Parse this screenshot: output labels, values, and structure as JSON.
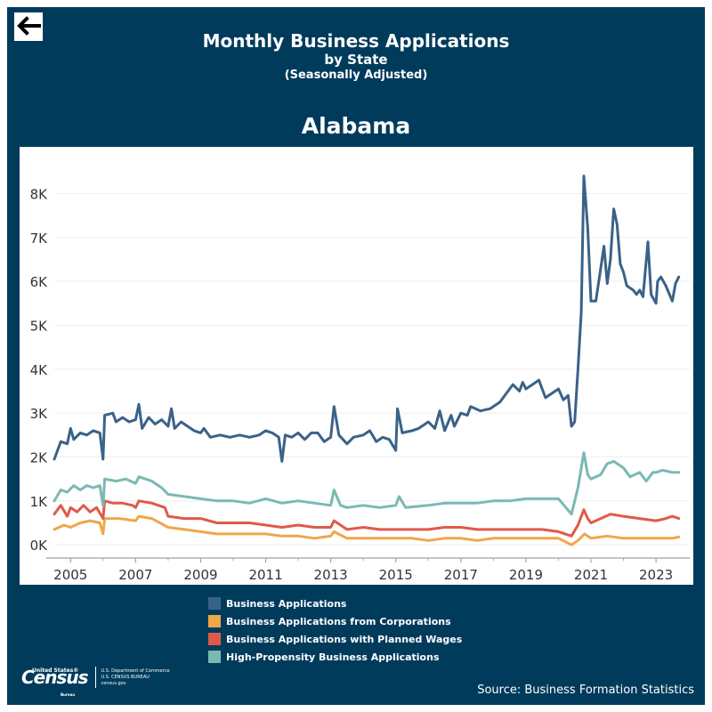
{
  "header": {
    "title": "Monthly Business Applications",
    "subtitle": "by State",
    "subtitle2": "(Seasonally Adjusted)",
    "state": "Alabama"
  },
  "footer": {
    "source": "Source: Business Formation Statistics",
    "logo": {
      "top": "United States®",
      "word": "Census",
      "bureau": "Bureau",
      "dept1": "U.S. Department of Commerce",
      "dept2": "U.S. CENSUS BUREAU",
      "dept3": "census.gov"
    }
  },
  "colors": {
    "background": "#003b5c",
    "ba": "#3a6289",
    "corp": "#f0a64a",
    "wages": "#e05a4a",
    "hp": "#7ab9b3"
  },
  "icons": {
    "back": "left-arrow-icon"
  },
  "chart_data": {
    "type": "line",
    "title": "Alabama",
    "xlabel": "",
    "ylabel": "",
    "xlim": [
      2004.5,
      2023.9
    ],
    "ylim": [
      -300,
      8900
    ],
    "y_ticks": [
      0,
      1000,
      2000,
      3000,
      4000,
      5000,
      6000,
      7000,
      8000
    ],
    "y_tick_labels": [
      "0K",
      "1K",
      "2K",
      "3K",
      "4K",
      "5K",
      "6K",
      "7K",
      "8K"
    ],
    "x_ticks": [
      2005,
      2007,
      2009,
      2011,
      2013,
      2015,
      2017,
      2019,
      2021,
      2023
    ],
    "x_tick_labels": [
      "2005",
      "2007",
      "2009",
      "2011",
      "2013",
      "2015",
      "2017",
      "2019",
      "2021",
      "2023"
    ],
    "grid": true,
    "legend_position": "bottom",
    "series": [
      {
        "name": "Business Applications",
        "color": "#3a6289",
        "points": [
          [
            2004.5,
            1950
          ],
          [
            2004.7,
            2350
          ],
          [
            2004.9,
            2300
          ],
          [
            2005.0,
            2650
          ],
          [
            2005.1,
            2400
          ],
          [
            2005.3,
            2550
          ],
          [
            2005.5,
            2500
          ],
          [
            2005.7,
            2600
          ],
          [
            2005.9,
            2550
          ],
          [
            2006.0,
            1950
          ],
          [
            2006.05,
            2950
          ],
          [
            2006.3,
            3000
          ],
          [
            2006.4,
            2800
          ],
          [
            2006.6,
            2900
          ],
          [
            2006.8,
            2800
          ],
          [
            2007.0,
            2850
          ],
          [
            2007.1,
            3200
          ],
          [
            2007.2,
            2650
          ],
          [
            2007.4,
            2900
          ],
          [
            2007.6,
            2750
          ],
          [
            2007.8,
            2850
          ],
          [
            2008.0,
            2700
          ],
          [
            2008.1,
            3100
          ],
          [
            2008.2,
            2650
          ],
          [
            2008.4,
            2800
          ],
          [
            2008.6,
            2700
          ],
          [
            2008.8,
            2600
          ],
          [
            2009.0,
            2550
          ],
          [
            2009.1,
            2650
          ],
          [
            2009.3,
            2450
          ],
          [
            2009.6,
            2500
          ],
          [
            2009.9,
            2450
          ],
          [
            2010.2,
            2500
          ],
          [
            2010.5,
            2450
          ],
          [
            2010.8,
            2500
          ],
          [
            2011.0,
            2600
          ],
          [
            2011.2,
            2550
          ],
          [
            2011.4,
            2450
          ],
          [
            2011.5,
            1900
          ],
          [
            2011.6,
            2500
          ],
          [
            2011.8,
            2450
          ],
          [
            2012.0,
            2550
          ],
          [
            2012.2,
            2400
          ],
          [
            2012.4,
            2550
          ],
          [
            2012.6,
            2550
          ],
          [
            2012.8,
            2350
          ],
          [
            2013.0,
            2450
          ],
          [
            2013.1,
            3150
          ],
          [
            2013.25,
            2500
          ],
          [
            2013.5,
            2300
          ],
          [
            2013.7,
            2450
          ],
          [
            2014.0,
            2500
          ],
          [
            2014.2,
            2600
          ],
          [
            2014.4,
            2350
          ],
          [
            2014.6,
            2450
          ],
          [
            2014.8,
            2400
          ],
          [
            2015.0,
            2150
          ],
          [
            2015.05,
            3100
          ],
          [
            2015.2,
            2550
          ],
          [
            2015.5,
            2600
          ],
          [
            2015.7,
            2650
          ],
          [
            2016.0,
            2800
          ],
          [
            2016.2,
            2650
          ],
          [
            2016.35,
            3050
          ],
          [
            2016.5,
            2600
          ],
          [
            2016.7,
            2950
          ],
          [
            2016.8,
            2700
          ],
          [
            2017.0,
            3000
          ],
          [
            2017.2,
            2950
          ],
          [
            2017.3,
            3150
          ],
          [
            2017.6,
            3050
          ],
          [
            2017.9,
            3100
          ],
          [
            2018.2,
            3250
          ],
          [
            2018.4,
            3450
          ],
          [
            2018.6,
            3650
          ],
          [
            2018.8,
            3500
          ],
          [
            2018.9,
            3700
          ],
          [
            2019.0,
            3550
          ],
          [
            2019.2,
            3650
          ],
          [
            2019.4,
            3750
          ],
          [
            2019.6,
            3350
          ],
          [
            2019.8,
            3450
          ],
          [
            2020.0,
            3550
          ],
          [
            2020.15,
            3300
          ],
          [
            2020.3,
            3400
          ],
          [
            2020.4,
            2700
          ],
          [
            2020.5,
            2800
          ],
          [
            2020.6,
            4000
          ],
          [
            2020.7,
            5300
          ],
          [
            2020.78,
            8400
          ],
          [
            2020.9,
            7200
          ],
          [
            2021.0,
            5550
          ],
          [
            2021.15,
            5550
          ],
          [
            2021.3,
            6300
          ],
          [
            2021.4,
            6800
          ],
          [
            2021.5,
            5950
          ],
          [
            2021.6,
            6500
          ],
          [
            2021.7,
            7650
          ],
          [
            2021.8,
            7300
          ],
          [
            2021.9,
            6400
          ],
          [
            2022.0,
            6200
          ],
          [
            2022.1,
            5900
          ],
          [
            2022.3,
            5800
          ],
          [
            2022.4,
            5700
          ],
          [
            2022.5,
            5800
          ],
          [
            2022.6,
            5650
          ],
          [
            2022.75,
            6900
          ],
          [
            2022.85,
            5700
          ],
          [
            2023.0,
            5500
          ],
          [
            2023.05,
            6000
          ],
          [
            2023.15,
            6100
          ],
          [
            2023.3,
            5900
          ],
          [
            2023.5,
            5550
          ],
          [
            2023.6,
            5950
          ],
          [
            2023.7,
            6100
          ]
        ]
      },
      {
        "name": "Business Applications from Corporations",
        "color": "#f0a64a",
        "points": [
          [
            2004.5,
            350
          ],
          [
            2004.8,
            450
          ],
          [
            2005.0,
            400
          ],
          [
            2005.3,
            500
          ],
          [
            2005.6,
            550
          ],
          [
            2005.9,
            500
          ],
          [
            2006.0,
            250
          ],
          [
            2006.05,
            600
          ],
          [
            2006.5,
            600
          ],
          [
            2007.0,
            550
          ],
          [
            2007.1,
            650
          ],
          [
            2007.5,
            600
          ],
          [
            2008.0,
            400
          ],
          [
            2008.5,
            350
          ],
          [
            2009.0,
            300
          ],
          [
            2009.5,
            250
          ],
          [
            2010.0,
            250
          ],
          [
            2010.5,
            250
          ],
          [
            2011.0,
            250
          ],
          [
            2011.5,
            200
          ],
          [
            2012.0,
            200
          ],
          [
            2012.5,
            150
          ],
          [
            2013.0,
            200
          ],
          [
            2013.1,
            300
          ],
          [
            2013.5,
            150
          ],
          [
            2014.0,
            150
          ],
          [
            2014.5,
            150
          ],
          [
            2015.0,
            150
          ],
          [
            2015.5,
            150
          ],
          [
            2016.0,
            100
          ],
          [
            2016.5,
            150
          ],
          [
            2017.0,
            150
          ],
          [
            2017.5,
            100
          ],
          [
            2018.0,
            150
          ],
          [
            2018.5,
            150
          ],
          [
            2019.0,
            150
          ],
          [
            2019.5,
            150
          ],
          [
            2020.0,
            150
          ],
          [
            2020.4,
            0
          ],
          [
            2020.6,
            100
          ],
          [
            2020.8,
            250
          ],
          [
            2021.0,
            150
          ],
          [
            2021.5,
            200
          ],
          [
            2022.0,
            150
          ],
          [
            2022.5,
            150
          ],
          [
            2023.0,
            150
          ],
          [
            2023.5,
            150
          ],
          [
            2023.7,
            180
          ]
        ]
      },
      {
        "name": "Business Applications with Planned Wages",
        "color": "#e05a4a",
        "points": [
          [
            2004.5,
            700
          ],
          [
            2004.7,
            900
          ],
          [
            2004.9,
            650
          ],
          [
            2005.0,
            850
          ],
          [
            2005.2,
            750
          ],
          [
            2005.4,
            900
          ],
          [
            2005.6,
            750
          ],
          [
            2005.8,
            850
          ],
          [
            2006.0,
            600
          ],
          [
            2006.05,
            1000
          ],
          [
            2006.3,
            950
          ],
          [
            2006.6,
            950
          ],
          [
            2006.9,
            900
          ],
          [
            2007.0,
            850
          ],
          [
            2007.1,
            1000
          ],
          [
            2007.5,
            950
          ],
          [
            2007.9,
            850
          ],
          [
            2008.0,
            650
          ],
          [
            2008.5,
            600
          ],
          [
            2009.0,
            600
          ],
          [
            2009.5,
            500
          ],
          [
            2010.0,
            500
          ],
          [
            2010.5,
            500
          ],
          [
            2011.0,
            450
          ],
          [
            2011.5,
            400
          ],
          [
            2012.0,
            450
          ],
          [
            2012.5,
            400
          ],
          [
            2013.0,
            400
          ],
          [
            2013.1,
            550
          ],
          [
            2013.5,
            350
          ],
          [
            2014.0,
            400
          ],
          [
            2014.5,
            350
          ],
          [
            2015.0,
            350
          ],
          [
            2015.5,
            350
          ],
          [
            2016.0,
            350
          ],
          [
            2016.5,
            400
          ],
          [
            2017.0,
            400
          ],
          [
            2017.5,
            350
          ],
          [
            2018.0,
            350
          ],
          [
            2018.5,
            350
          ],
          [
            2019.0,
            350
          ],
          [
            2019.5,
            350
          ],
          [
            2020.0,
            300
          ],
          [
            2020.4,
            200
          ],
          [
            2020.6,
            450
          ],
          [
            2020.78,
            800
          ],
          [
            2020.9,
            600
          ],
          [
            2021.0,
            500
          ],
          [
            2021.3,
            600
          ],
          [
            2021.6,
            700
          ],
          [
            2022.0,
            650
          ],
          [
            2022.5,
            600
          ],
          [
            2023.0,
            550
          ],
          [
            2023.3,
            600
          ],
          [
            2023.5,
            650
          ],
          [
            2023.7,
            600
          ]
        ]
      },
      {
        "name": "High-Propensity Business Applications",
        "color": "#7ab9b3",
        "points": [
          [
            2004.5,
            1000
          ],
          [
            2004.7,
            1250
          ],
          [
            2004.9,
            1200
          ],
          [
            2005.1,
            1350
          ],
          [
            2005.3,
            1250
          ],
          [
            2005.5,
            1350
          ],
          [
            2005.7,
            1300
          ],
          [
            2005.9,
            1350
          ],
          [
            2006.0,
            900
          ],
          [
            2006.05,
            1500
          ],
          [
            2006.4,
            1450
          ],
          [
            2006.7,
            1500
          ],
          [
            2007.0,
            1400
          ],
          [
            2007.1,
            1550
          ],
          [
            2007.5,
            1450
          ],
          [
            2007.8,
            1300
          ],
          [
            2008.0,
            1150
          ],
          [
            2008.5,
            1100
          ],
          [
            2009.0,
            1050
          ],
          [
            2009.5,
            1000
          ],
          [
            2010.0,
            1000
          ],
          [
            2010.5,
            950
          ],
          [
            2011.0,
            1050
          ],
          [
            2011.5,
            950
          ],
          [
            2012.0,
            1000
          ],
          [
            2012.5,
            950
          ],
          [
            2013.0,
            900
          ],
          [
            2013.1,
            1250
          ],
          [
            2013.3,
            900
          ],
          [
            2013.5,
            850
          ],
          [
            2014.0,
            900
          ],
          [
            2014.5,
            850
          ],
          [
            2015.0,
            900
          ],
          [
            2015.1,
            1100
          ],
          [
            2015.3,
            850
          ],
          [
            2016.0,
            900
          ],
          [
            2016.5,
            950
          ],
          [
            2017.0,
            950
          ],
          [
            2017.5,
            950
          ],
          [
            2018.0,
            1000
          ],
          [
            2018.5,
            1000
          ],
          [
            2019.0,
            1050
          ],
          [
            2019.5,
            1050
          ],
          [
            2020.0,
            1050
          ],
          [
            2020.4,
            700
          ],
          [
            2020.6,
            1300
          ],
          [
            2020.78,
            2100
          ],
          [
            2020.9,
            1600
          ],
          [
            2021.0,
            1500
          ],
          [
            2021.3,
            1600
          ],
          [
            2021.5,
            1850
          ],
          [
            2021.7,
            1900
          ],
          [
            2022.0,
            1750
          ],
          [
            2022.2,
            1550
          ],
          [
            2022.5,
            1650
          ],
          [
            2022.7,
            1450
          ],
          [
            2022.9,
            1650
          ],
          [
            2023.0,
            1650
          ],
          [
            2023.2,
            1700
          ],
          [
            2023.5,
            1650
          ],
          [
            2023.7,
            1650
          ]
        ]
      }
    ]
  }
}
